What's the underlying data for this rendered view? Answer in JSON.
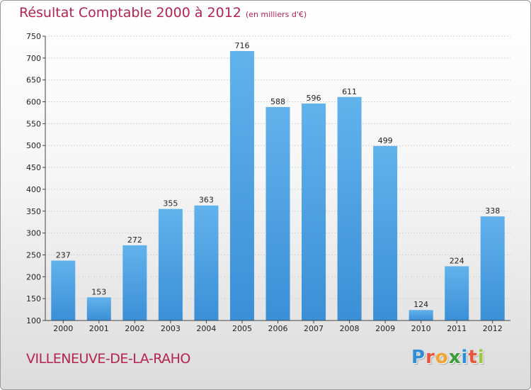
{
  "title": "Résultat Comptable 2000 à 2012",
  "subtitle": "(en milliers d'€)",
  "city": "VILLENEUVE-DE-LA-RAHO",
  "logo": {
    "text": "Proxiti",
    "letters": [
      "P",
      "r",
      "o",
      "x",
      "i",
      "t",
      "i"
    ],
    "colors": [
      "#2e8fd8",
      "#e8553a",
      "#f2a431",
      "#3a9f3a",
      "#2e8fd8",
      "#e8553a",
      "#9cc63a"
    ]
  },
  "colors": {
    "bar": "#3a8fd6",
    "bar_light": "#62b2ec",
    "title": "#b5234f"
  },
  "chart_data": {
    "type": "bar",
    "categories": [
      "2000",
      "2001",
      "2002",
      "2003",
      "2004",
      "2005",
      "2006",
      "2007",
      "2008",
      "2009",
      "2010",
      "2011",
      "2012"
    ],
    "values": [
      237,
      153,
      272,
      355,
      363,
      716,
      588,
      596,
      611,
      499,
      124,
      224,
      338
    ],
    "ylim": [
      100,
      750
    ],
    "yticks": [
      100,
      150,
      200,
      250,
      300,
      350,
      400,
      450,
      500,
      550,
      600,
      650,
      700,
      750
    ],
    "title": "Résultat Comptable 2000 à 2012",
    "ylabel": "(en milliers d'€)",
    "xlabel": "",
    "grid": true
  }
}
